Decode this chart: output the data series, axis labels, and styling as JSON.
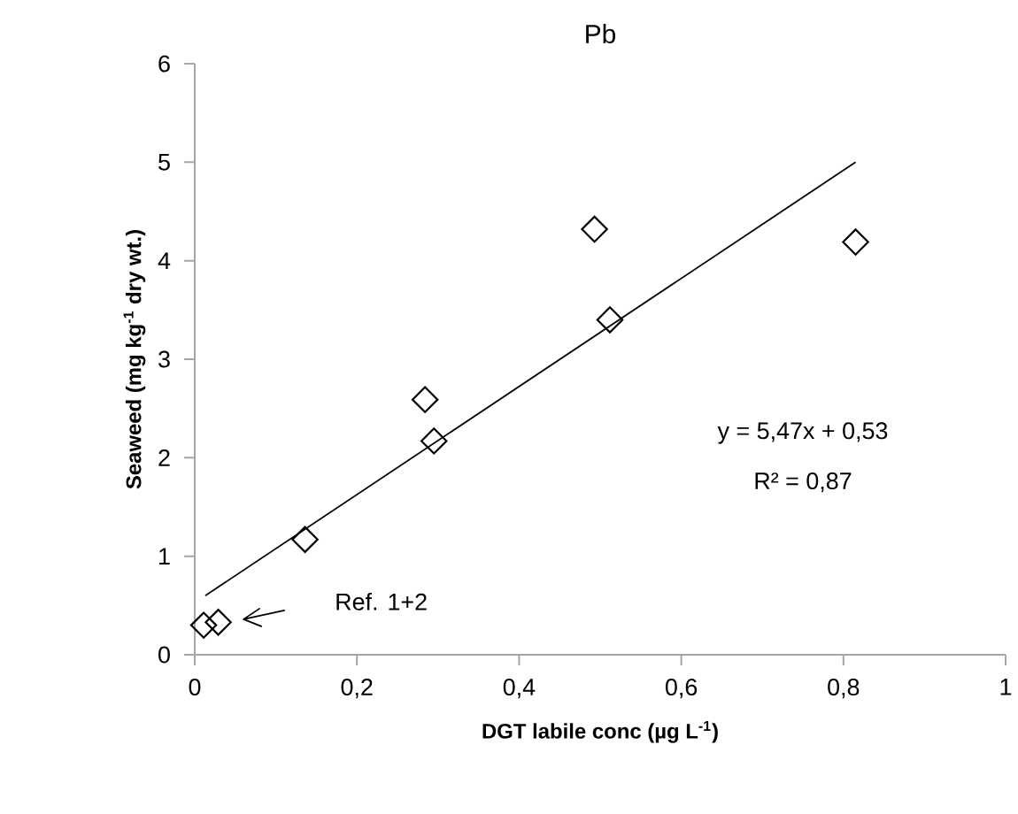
{
  "chart_data": {
    "type": "scatter",
    "title": "Pb",
    "xlabel": "DGT labile conc (µg L$^{-1}$)",
    "ylabel": "Seaweed (mg kg$^{-1}$ dry wt.)",
    "series": [
      {
        "type": "scatter",
        "color": "#000000",
        "marker": "diamond",
        "x": [
          0.011,
          0.029,
          0.136,
          0.284,
          0.295,
          0.493,
          0.512,
          0.815
        ],
        "values": [
          0.3,
          0.33,
          1.17,
          2.59,
          2.17,
          4.32,
          3.4,
          4.19
        ]
      },
      {
        "type": "line",
        "color": "#000000",
        "marker": "none",
        "x": [
          0.013,
          0.815
        ],
        "values": [
          0.6,
          5.0
        ]
      }
    ],
    "xlim": [
      0,
      1
    ],
    "ylim": [
      0,
      6
    ],
    "xticks": [
      0,
      {
        "value": 0.2,
        "label": "0,2"
      },
      {
        "value": 0.4,
        "label": "0,4"
      },
      {
        "value": 0.6,
        "label": "0,6"
      },
      {
        "value": 0.8,
        "label": "0,8"
      },
      1
    ],
    "yticks": [
      0,
      1,
      2,
      3,
      4,
      5,
      6
    ],
    "annotations": [
      "y = 5,47x + 0,53",
      "R² = 0,87",
      "Ref. 1+2"
    ]
  }
}
